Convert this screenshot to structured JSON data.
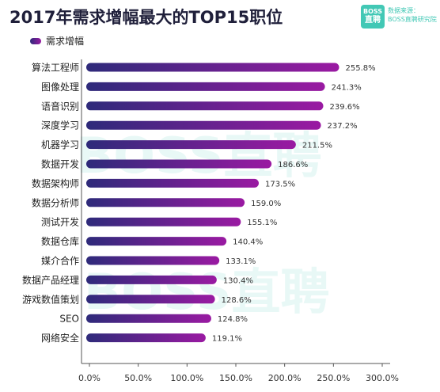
{
  "header": {
    "title": "2017年需求增幅最大的TOP15职位",
    "logo_line1": "BOSS",
    "logo_line2": "直聘",
    "source_line1": "数据来源：",
    "source_line2": "BOSS直聘研究院"
  },
  "watermarks": [
    "BOSS直聘",
    "BOSS直聘"
  ],
  "colors": {
    "bar_start": "#2e2a7a",
    "bar_end": "#9a1aa2",
    "accent": "#42c8b5"
  },
  "chart_data": {
    "type": "bar",
    "orientation": "horizontal",
    "categories": [
      "算法工程师",
      "图像处理",
      "语音识别",
      "深度学习",
      "机器学习",
      "数据开发",
      "数据架构师",
      "数据分析师",
      "测试开发",
      "数据仓库",
      "媒介合作",
      "数据产品经理",
      "游戏数值策划",
      "SEO",
      "网络安全"
    ],
    "series": [
      {
        "name": "需求增幅",
        "values": [
          255.8,
          241.3,
          239.6,
          237.2,
          211.5,
          186.6,
          173.5,
          159.0,
          155.1,
          140.4,
          133.1,
          130.4,
          128.6,
          124.8,
          119.1
        ],
        "labels": [
          "255.8%",
          "241.3%",
          "239.6%",
          "237.2%",
          "211.5%",
          "186.6%",
          "173.5%",
          "159.0%",
          "155.1%",
          "140.4%",
          "133.1%",
          "130.4%",
          "128.6%",
          "124.8%",
          "119.1%"
        ]
      }
    ],
    "xlim": [
      0,
      300
    ],
    "xticks": [
      0,
      50,
      100,
      150,
      200,
      250,
      300
    ],
    "xtick_labels": [
      "0.0%",
      "50.0%",
      "100.0%",
      "150.0%",
      "200.0%",
      "250.0%",
      "300.0%"
    ],
    "legend": "top-left",
    "grid": false
  }
}
